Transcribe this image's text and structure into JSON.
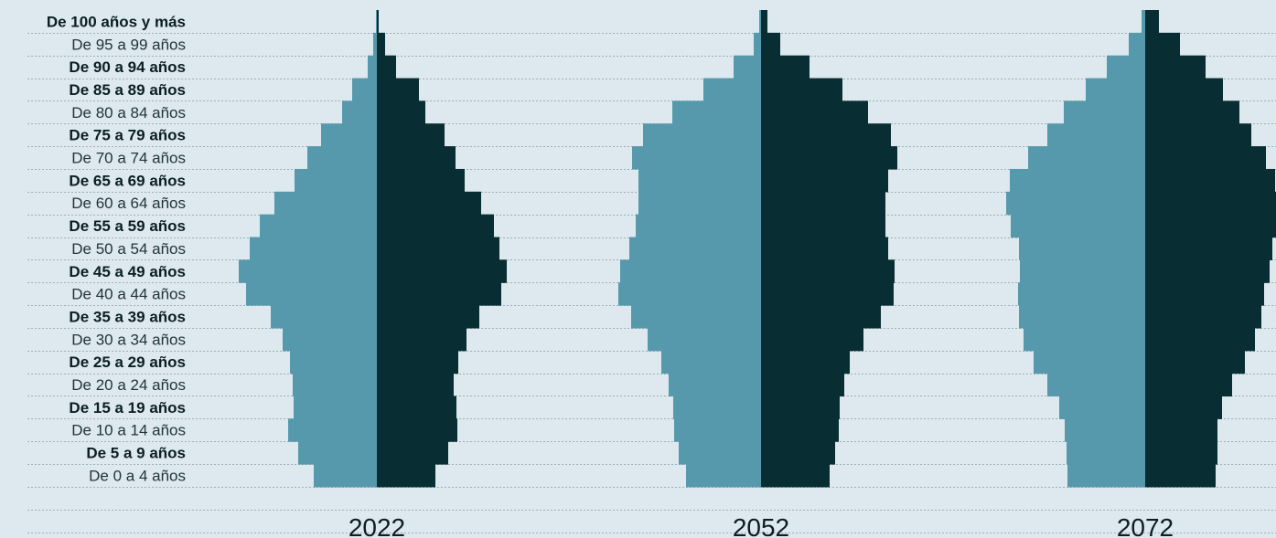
{
  "colors": {
    "background": "#dde9ee",
    "left_bars": "#5799ac",
    "right_bars": "#082d32",
    "text": "#0b1e24",
    "grid": "#9bb0b8"
  },
  "chart_data": {
    "type": "bar",
    "subtype": "population-pyramid",
    "categories": [
      "De 100 años y más",
      "De 95 a 99 años",
      "De 90 a 94 años",
      "De 85 a 89 años",
      "De 80 a 84 años",
      "De 75 a 79 años",
      "De 70 a 74 años",
      "De 65 a 69 años",
      "De 60 a 64 años",
      "De 55 a 59 años",
      "De 50 a 54 años",
      "De 45 a 49 años",
      "De 40 a 44 años",
      "De 35 a 39 años",
      "De 30 a 34 años",
      "De 25 a 29 años",
      "De 20 a 24 años",
      "De 15 a 19 años",
      "De 10 a 14 años",
      "De 5 a 9 años",
      "De 0 a 4 años"
    ],
    "bold_categories": [
      "De 100 años y más",
      "De 90 a 94 años",
      "De 85 a 89 años",
      "De 75 a 79 años",
      "De 65 a 69 años",
      "De 55 a 59 años",
      "De 45 a 49 años",
      "De 35 a 39 años",
      "De 25 a 29 años",
      "De 15 a 19 años",
      "De 5 a 9 años"
    ],
    "grid": true,
    "legend": "none",
    "panels": [
      {
        "year": "2022",
        "left": [
          1,
          4,
          10,
          27,
          38,
          61,
          76,
          90,
          112,
          128,
          139,
          151,
          143,
          116,
          103,
          95,
          92,
          91,
          97,
          86,
          69
        ],
        "right": [
          2,
          9,
          21,
          46,
          53,
          74,
          86,
          96,
          114,
          128,
          134,
          142,
          136,
          112,
          98,
          89,
          84,
          87,
          88,
          78,
          64
        ]
      },
      {
        "year": "2052",
        "left": [
          2,
          8,
          30,
          63,
          97,
          129,
          141,
          134,
          134,
          137,
          144,
          154,
          156,
          142,
          124,
          109,
          101,
          96,
          95,
          90,
          82
        ],
        "right": [
          7,
          21,
          53,
          89,
          117,
          142,
          149,
          139,
          136,
          136,
          139,
          146,
          145,
          131,
          112,
          97,
          91,
          86,
          85,
          81,
          75
        ]
      },
      {
        "year": "2072",
        "left": [
          4,
          18,
          42,
          65,
          89,
          107,
          128,
          148,
          152,
          147,
          138,
          137,
          139,
          138,
          133,
          122,
          107,
          94,
          88,
          86,
          85
        ],
        "right": [
          15,
          38,
          66,
          85,
          103,
          116,
          132,
          142,
          150,
          148,
          139,
          136,
          130,
          127,
          120,
          109,
          95,
          84,
          79,
          79,
          77
        ]
      }
    ],
    "xlim": [
      0,
      160
    ]
  }
}
